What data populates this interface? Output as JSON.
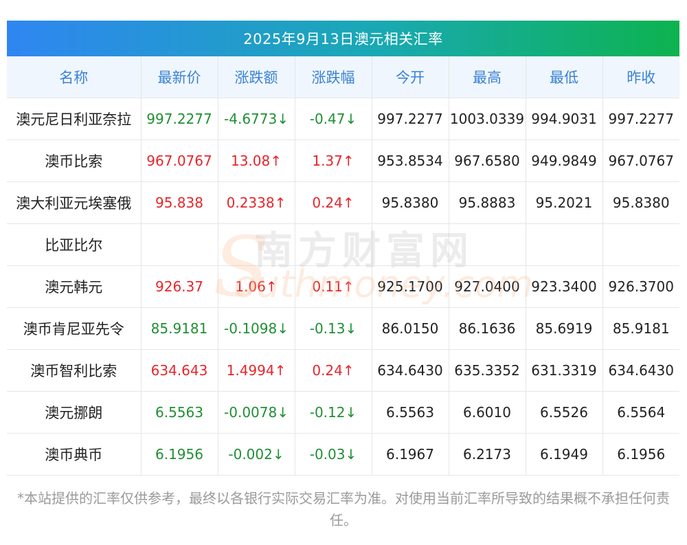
{
  "title": "2025年9月13日澳元相关汇率",
  "headers": [
    "名称",
    "最新价",
    "涨跌额",
    "涨跌幅",
    "今开",
    "最高",
    "最低",
    "昨收"
  ],
  "rows": [
    {
      "name": "澳元尼日利亚奈拉",
      "latest": "997.2277",
      "change": "-4.6773↓",
      "pct": "-0.47↓",
      "open": "997.2277",
      "high": "1003.0339",
      "low": "994.9031",
      "prev": "997.2277",
      "dir": "down"
    },
    {
      "name": "澳币比索",
      "latest": "967.0767",
      "change": "13.08↑",
      "pct": "1.37↑",
      "open": "953.8534",
      "high": "967.6580",
      "low": "949.9849",
      "prev": "967.0767",
      "dir": "up"
    },
    {
      "name": "澳大利亚元埃塞俄",
      "latest": "95.838",
      "change": "0.2338↑",
      "pct": "0.24↑",
      "open": "95.8380",
      "high": "95.8883",
      "low": "95.2021",
      "prev": "95.8380",
      "dir": "up"
    },
    {
      "name": "比亚比尔",
      "latest": "",
      "change": "",
      "pct": "",
      "open": "",
      "high": "",
      "low": "",
      "prev": "",
      "dir": "none"
    },
    {
      "name": "澳元韩元",
      "latest": "926.37",
      "change": "1.06↑",
      "pct": "0.11↑",
      "open": "925.1700",
      "high": "927.0400",
      "low": "923.3400",
      "prev": "926.3700",
      "dir": "up"
    },
    {
      "name": "澳币肯尼亚先令",
      "latest": "85.9181",
      "change": "-0.1098↓",
      "pct": "-0.13↓",
      "open": "86.0150",
      "high": "86.1636",
      "low": "85.6919",
      "prev": "85.9181",
      "dir": "down"
    },
    {
      "name": "澳币智利比索",
      "latest": "634.643",
      "change": "1.4994↑",
      "pct": "0.24↑",
      "open": "634.6430",
      "high": "635.3352",
      "low": "631.3319",
      "prev": "634.6430",
      "dir": "up"
    },
    {
      "name": "澳元挪朗",
      "latest": "6.5563",
      "change": "-0.0078↓",
      "pct": "-0.12↓",
      "open": "6.5563",
      "high": "6.6010",
      "low": "6.5526",
      "prev": "6.5564",
      "dir": "down"
    },
    {
      "name": "澳币典币",
      "latest": "6.1956",
      "change": "-0.002↓",
      "pct": "-0.03↓",
      "open": "6.1967",
      "high": "6.2173",
      "low": "6.1949",
      "prev": "6.1956",
      "dir": "down"
    }
  ],
  "watermark": {
    "cn": "南方财富网",
    "en": "outhmoney.com",
    "s": "S"
  },
  "note": "*本站提供的汇率仅供参考，最终以各银行实际交易汇率为准。对使用当前汇率所导致的结果概不承担任何责任。",
  "colors": {
    "up": "#e5262b",
    "down": "#1f8f33",
    "header_text": "#3a82d6",
    "title_gradient_start": "#2f86f2",
    "title_gradient_end": "#0db34f"
  }
}
